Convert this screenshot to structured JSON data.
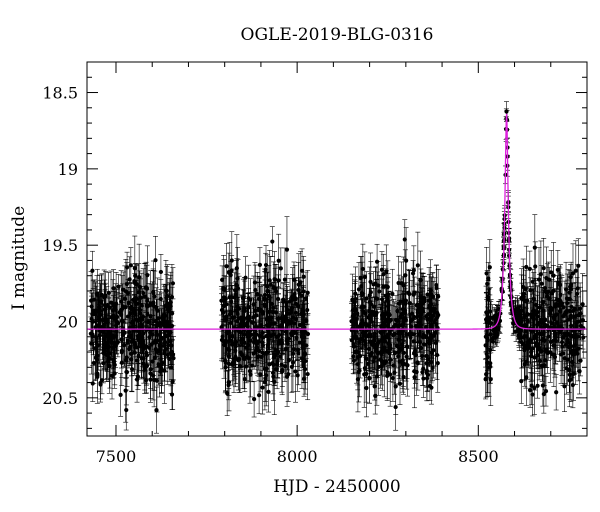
{
  "chart_data": {
    "type": "scatter",
    "title": "OGLE-2019-BLG-0316",
    "xlabel": "HJD - 2450000",
    "ylabel": "I magnitude",
    "xlim": [
      7420,
      8800
    ],
    "ylim": [
      20.75,
      18.3
    ],
    "y_inverted": true,
    "grid": false,
    "x_ticks": [
      7500,
      8000,
      8500
    ],
    "x_tick_labels": [
      "7500",
      "8000",
      "8500"
    ],
    "y_ticks": [
      18.5,
      19,
      19.5,
      20,
      20.5
    ],
    "y_tick_labels": [
      "18.5",
      "19",
      "19.5",
      "20",
      "20.5"
    ],
    "x_minor_step": 100,
    "y_minor_step": 0.1,
    "data_color": "#000000",
    "model_color": "#dd22dd",
    "baseline_mag": 20.05,
    "seasons": [
      {
        "start": 7430,
        "end": 7660
      },
      {
        "start": 7790,
        "end": 8030
      },
      {
        "start": 8150,
        "end": 8390
      },
      {
        "start": 8520,
        "end": 8790
      }
    ],
    "sample_points": [
      {
        "x": 7440,
        "y": 19.85
      },
      {
        "x": 7460,
        "y": 20.3
      },
      {
        "x": 7480,
        "y": 19.7
      },
      {
        "x": 7520,
        "y": 20.5
      },
      {
        "x": 7560,
        "y": 20.0
      },
      {
        "x": 7600,
        "y": 19.75
      },
      {
        "x": 7640,
        "y": 20.4
      },
      {
        "x": 7800,
        "y": 19.9
      },
      {
        "x": 7850,
        "y": 20.45
      },
      {
        "x": 7900,
        "y": 19.8
      },
      {
        "x": 7950,
        "y": 20.2
      },
      {
        "x": 8000,
        "y": 19.75
      },
      {
        "x": 8160,
        "y": 20.3
      },
      {
        "x": 8200,
        "y": 19.7
      },
      {
        "x": 8250,
        "y": 20.55
      },
      {
        "x": 8300,
        "y": 19.85
      },
      {
        "x": 8350,
        "y": 20.1
      },
      {
        "x": 8540,
        "y": 20.1
      },
      {
        "x": 8560,
        "y": 19.4
      },
      {
        "x": 8572,
        "y": 18.9
      },
      {
        "x": 8578,
        "y": 18.72
      },
      {
        "x": 8590,
        "y": 19.3
      },
      {
        "x": 8620,
        "y": 20.2
      },
      {
        "x": 8680,
        "y": 19.9
      },
      {
        "x": 8740,
        "y": 20.4
      },
      {
        "x": 8780,
        "y": 20.05
      }
    ],
    "model": {
      "type": "single-lens",
      "t0": 8578,
      "tE": 11,
      "u0": 0.28,
      "baseline": 20.05
    }
  }
}
